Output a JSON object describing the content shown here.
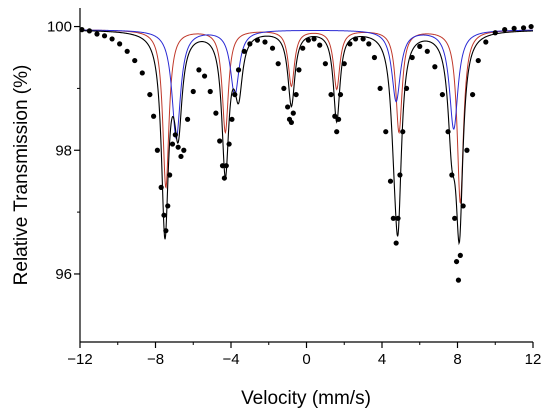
{
  "chart_data": {
    "type": "scatter",
    "xlabel": "Velocity (mm/s)",
    "ylabel": "Relative Transmission (%)",
    "xlim": [
      -12,
      12
    ],
    "ylim": [
      94.9,
      100.3
    ],
    "xticks": [
      -12,
      -8,
      -4,
      0,
      4,
      8,
      12
    ],
    "xtick_labels": [
      "−12",
      "−8",
      "−4",
      "0",
      "4",
      "8",
      "12"
    ],
    "yticks": [
      96,
      98,
      100
    ],
    "ytick_labels": [
      "96",
      "98",
      "100"
    ],
    "grid": false,
    "legend": "none",
    "colors": {
      "points": "#000000",
      "total_fit": "#000000",
      "sextet_red": "#c0392b",
      "sextet_blue": "#2a2ad4"
    },
    "series": [
      {
        "kind": "points",
        "x": [
          -11.9,
          -11.5,
          -11.1,
          -10.7,
          -10.3,
          -9.9,
          -9.5,
          -9.1,
          -8.7,
          -8.3,
          -8.1,
          -7.9,
          -7.7,
          -7.55,
          -7.45,
          -7.35,
          -7.25,
          -7.1,
          -6.95,
          -6.8,
          -6.65,
          -6.5,
          -6.3,
          -6.0,
          -5.7,
          -5.4,
          -5.1,
          -4.8,
          -4.6,
          -4.45,
          -4.35,
          -4.25,
          -4.1,
          -3.95,
          -3.8,
          -3.6,
          -3.3,
          -3.0,
          -2.6,
          -2.2,
          -1.8,
          -1.5,
          -1.2,
          -1.0,
          -0.9,
          -0.8,
          -0.7,
          -0.55,
          -0.4,
          -0.2,
          0.1,
          0.4,
          0.7,
          1.0,
          1.3,
          1.5,
          1.6,
          1.7,
          1.8,
          2.0,
          2.3,
          2.6,
          3.0,
          3.3,
          3.6,
          3.9,
          4.2,
          4.45,
          4.6,
          4.75,
          4.85,
          4.95,
          5.1,
          5.3,
          5.6,
          6.0,
          6.4,
          6.8,
          7.2,
          7.5,
          7.7,
          7.85,
          7.95,
          8.05,
          8.15,
          8.3,
          8.5,
          8.8,
          9.1,
          9.5,
          10.0,
          10.5,
          11.0,
          11.5,
          11.9
        ],
        "y": [
          99.95,
          99.93,
          99.88,
          99.85,
          99.8,
          99.72,
          99.6,
          99.45,
          99.25,
          98.9,
          98.55,
          98.0,
          97.4,
          96.95,
          96.7,
          97.1,
          97.6,
          98.1,
          98.25,
          98.05,
          97.9,
          98.0,
          98.5,
          98.95,
          99.3,
          99.2,
          98.95,
          98.6,
          98.15,
          97.75,
          97.55,
          97.75,
          98.1,
          98.5,
          98.9,
          99.3,
          99.6,
          99.72,
          99.78,
          99.75,
          99.65,
          99.4,
          99.0,
          98.7,
          98.5,
          98.45,
          98.6,
          98.9,
          99.3,
          99.65,
          99.78,
          99.8,
          99.7,
          99.4,
          98.9,
          98.55,
          98.3,
          98.5,
          98.9,
          99.4,
          99.72,
          99.8,
          99.8,
          99.72,
          99.5,
          99.0,
          98.3,
          97.5,
          96.9,
          96.5,
          96.9,
          97.6,
          98.3,
          99.0,
          99.5,
          99.68,
          99.6,
          99.35,
          98.9,
          98.3,
          97.6,
          96.9,
          96.2,
          95.9,
          96.3,
          97.1,
          98.0,
          98.9,
          99.45,
          99.75,
          99.9,
          99.95,
          99.97,
          99.98,
          100.0
        ]
      },
      {
        "kind": "total_fit",
        "name": "",
        "peaks": [
          {
            "x": -7.5,
            "depth": 3.2,
            "width": 0.45
          },
          {
            "x": -6.8,
            "depth": 1.5,
            "width": 0.5
          },
          {
            "x": -4.3,
            "depth": 2.25,
            "width": 0.45
          },
          {
            "x": -3.6,
            "depth": 0.95,
            "width": 0.5
          },
          {
            "x": -0.8,
            "depth": 1.2,
            "width": 0.45
          },
          {
            "x": 1.6,
            "depth": 1.45,
            "width": 0.42
          },
          {
            "x": 4.85,
            "depth": 2.7,
            "width": 0.45
          },
          {
            "x": 4.65,
            "depth": 0.95,
            "width": 0.5
          },
          {
            "x": 8.1,
            "depth": 3.0,
            "width": 0.45
          },
          {
            "x": 7.7,
            "depth": 1.5,
            "width": 0.5
          }
        ],
        "baseline": 99.95
      },
      {
        "kind": "sextet_red",
        "name": "",
        "peaks": [
          {
            "x": -7.45,
            "depth": 2.55,
            "width": 0.4
          },
          {
            "x": -4.3,
            "depth": 1.65,
            "width": 0.4
          },
          {
            "x": -0.8,
            "depth": 0.9,
            "width": 0.4
          },
          {
            "x": 1.6,
            "depth": 0.95,
            "width": 0.4
          },
          {
            "x": 4.9,
            "depth": 1.65,
            "width": 0.4
          },
          {
            "x": 8.15,
            "depth": 2.8,
            "width": 0.4
          }
        ],
        "baseline": 99.95
      },
      {
        "kind": "sextet_blue",
        "name": "",
        "peaks": [
          {
            "x": -6.9,
            "depth": 1.75,
            "width": 0.55
          },
          {
            "x": -3.8,
            "depth": 1.05,
            "width": 0.55
          },
          {
            "x": 4.75,
            "depth": 1.15,
            "width": 0.55
          },
          {
            "x": 7.8,
            "depth": 1.6,
            "width": 0.55
          }
        ],
        "baseline": 99.95
      }
    ]
  }
}
